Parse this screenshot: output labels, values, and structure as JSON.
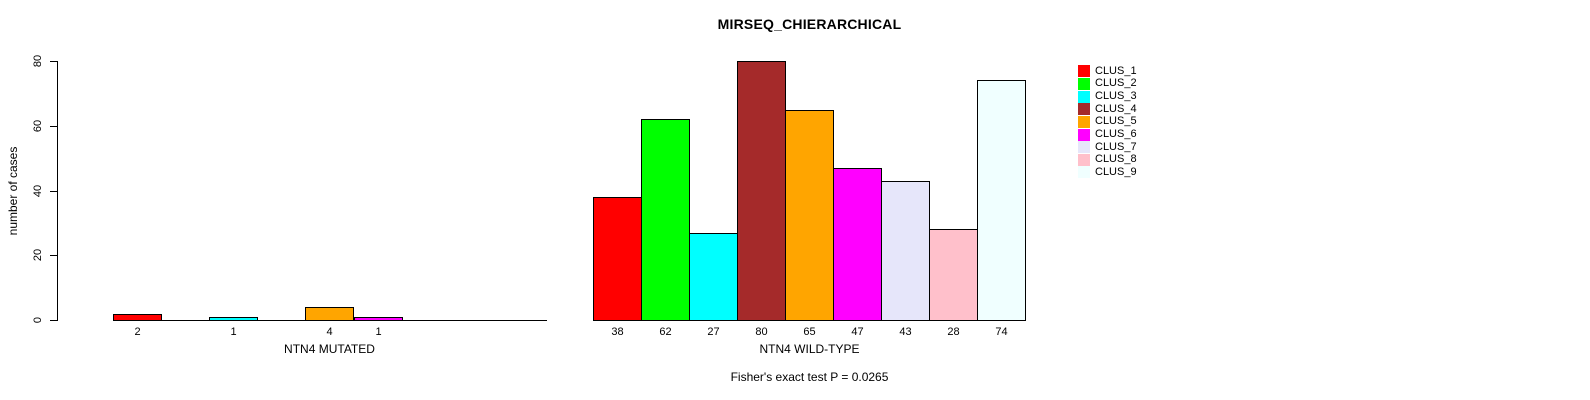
{
  "figure": {
    "title": "MIRSEQ_CHIERARCHICAL",
    "ylabel": "number of cases",
    "footnote": "Fisher's exact test P = 0.0265"
  },
  "legend": {
    "position": "right",
    "entries": [
      {
        "label": "CLUS_1",
        "color": "#FF0000"
      },
      {
        "label": "CLUS_2",
        "color": "#00FF00"
      },
      {
        "label": "CLUS_3",
        "color": "#00FFFF"
      },
      {
        "label": "CLUS_4",
        "color": "#A52A2A"
      },
      {
        "label": "CLUS_5",
        "color": "#FFA500"
      },
      {
        "label": "CLUS_6",
        "color": "#FF00FF"
      },
      {
        "label": "CLUS_7",
        "color": "#E6E6FA"
      },
      {
        "label": "CLUS_8",
        "color": "#FFC0CB"
      },
      {
        "label": "CLUS_9",
        "color": "#F0FFFF"
      }
    ]
  },
  "chart_data": [
    {
      "type": "bar",
      "title": "",
      "xlabel": "NTN4 MUTATED",
      "ylabel": "number of cases",
      "categories": [
        "CLUS_1",
        "CLUS_2",
        "CLUS_3",
        "CLUS_4",
        "CLUS_5",
        "CLUS_6",
        "CLUS_7",
        "CLUS_8",
        "CLUS_9"
      ],
      "values": [
        2,
        0,
        1,
        0,
        4,
        1,
        0,
        0,
        0
      ],
      "bar_labels": [
        "2",
        "",
        "1",
        "",
        "4",
        "1",
        "",
        "",
        ""
      ],
      "colors": [
        "#FF0000",
        "#00FF00",
        "#00FFFF",
        "#A52A2A",
        "#FFA500",
        "#FF00FF",
        "#E6E6FA",
        "#FFC0CB",
        "#F0FFFF"
      ],
      "ylim": [
        0,
        80
      ],
      "yticks": [
        0,
        20,
        40,
        60,
        80
      ],
      "grid": false
    },
    {
      "type": "bar",
      "title": "MIRSEQ_CHIERARCHICAL",
      "xlabel": "NTN4 WILD-TYPE",
      "ylabel": "",
      "categories": [
        "CLUS_1",
        "CLUS_2",
        "CLUS_3",
        "CLUS_4",
        "CLUS_5",
        "CLUS_6",
        "CLUS_7",
        "CLUS_8",
        "CLUS_9"
      ],
      "values": [
        38,
        62,
        27,
        80,
        65,
        47,
        43,
        28,
        74
      ],
      "bar_labels": [
        "38",
        "62",
        "27",
        "80",
        "65",
        "47",
        "43",
        "28",
        "74"
      ],
      "colors": [
        "#FF0000",
        "#00FF00",
        "#00FFFF",
        "#A52A2A",
        "#FFA500",
        "#FF00FF",
        "#E6E6FA",
        "#FFC0CB",
        "#F0FFFF"
      ],
      "ylim": [
        0,
        80
      ],
      "yticks": [
        0,
        20,
        40,
        60,
        80
      ],
      "grid": false
    }
  ]
}
